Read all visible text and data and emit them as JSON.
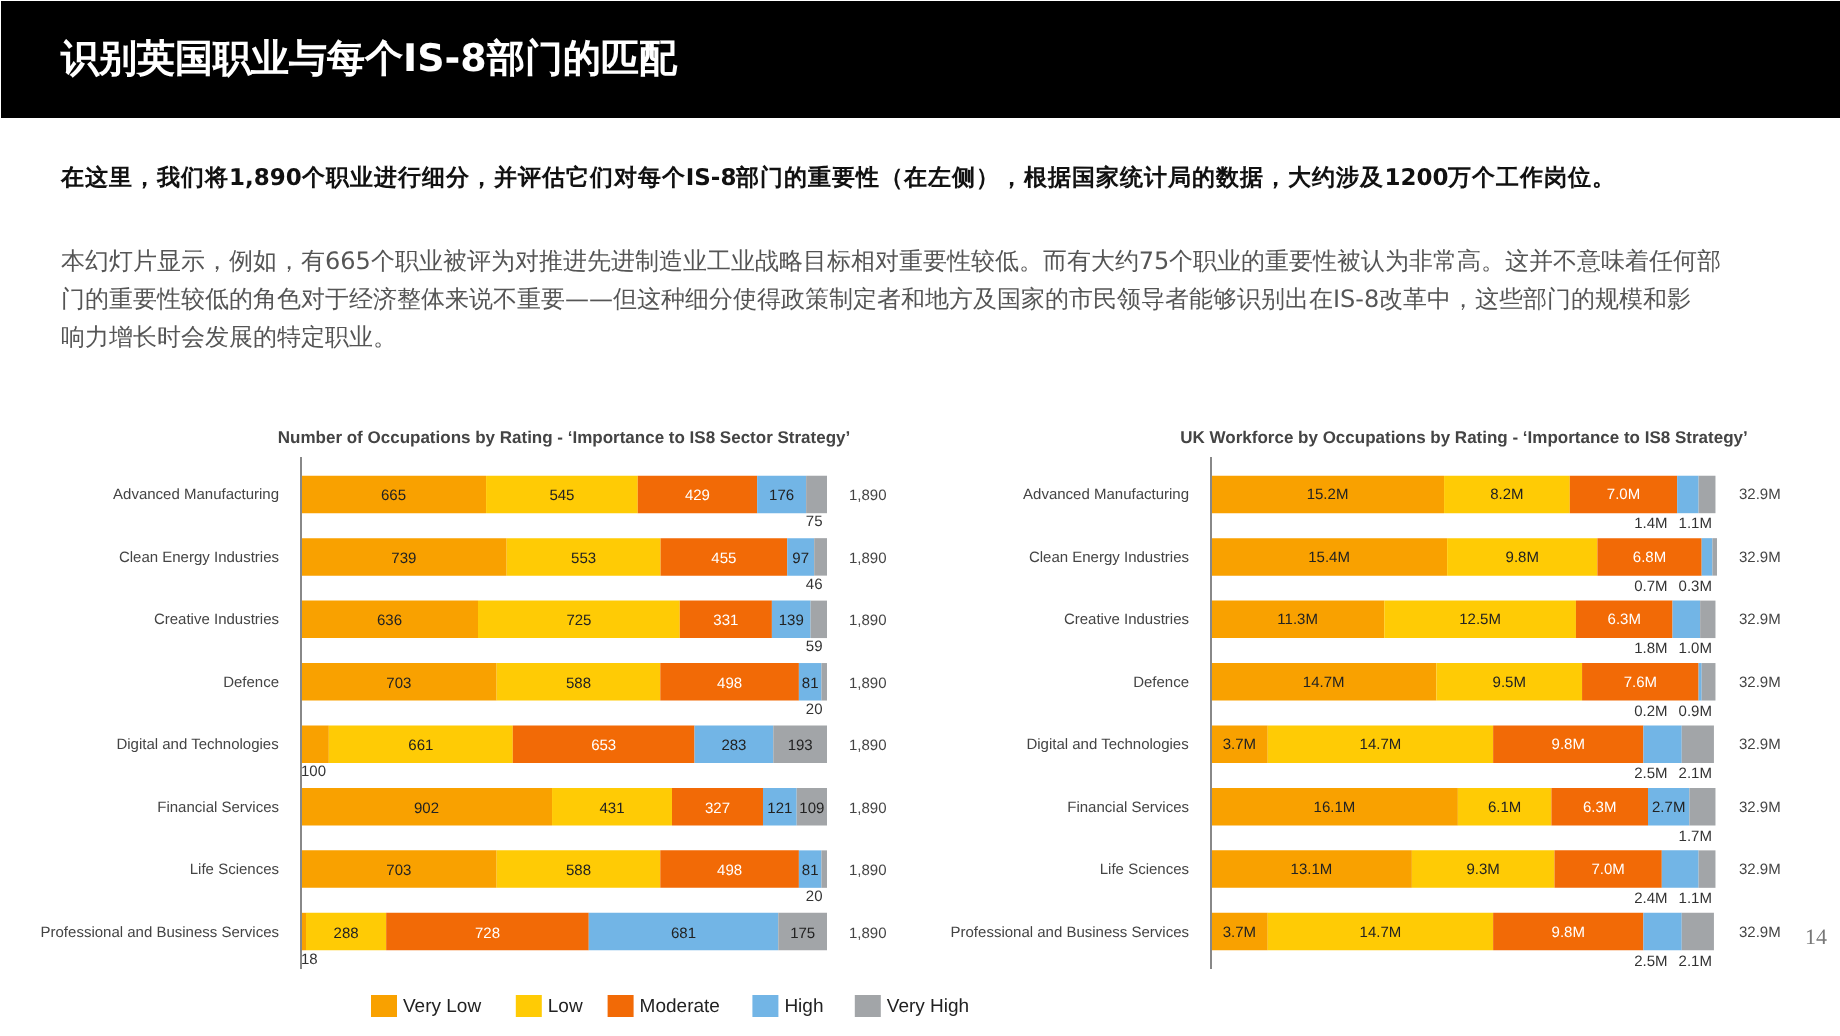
{
  "chart_data": [
    {
      "type": "other",
      "title": "识别英国职业与每个IS-8部门的匹配",
      "subtitle": "在这里，我们将1,890个职业进行细分，并评估它们对每个IS-8部门的重要性（在左侧），根据国家统计局的数据，大约涉及1200万个工作岗位。",
      "annotations": [
        "本幻灯片显示，例如，有665个职业被评为对推进先进制造业工业战略目标相对重要性较低。而有大约75个职业的重要性被认为非常高。这并不意味着任何部门的重要性较低的角色对于经济整体来说不重要——但这种细分使得政策制定者和地方及国家的市民领导者能够识别出在IS-8改革中，这些部门的规模和影响力增长时会发展的特定职业。",
        "14"
      ]
    },
    {
      "type": "bar",
      "orientation": "horizontal",
      "stacked": true,
      "data_labels": true,
      "legend": "bottom",
      "title": "Number of Occupations by Rating - ‘Importance to IS8 Sector Strategy’",
      "categories": [
        "Advanced Manufacturing",
        "Clean Energy Industries",
        "Creative Industries",
        "Defence",
        "Digital and Technologies",
        "Financial Services",
        "Life Sciences",
        "Professional and Business Services"
      ],
      "series": [
        {
          "name": "Very Low",
          "color": "#f9a100",
          "values": [
            665,
            739,
            636,
            703,
            100,
            902,
            703,
            18
          ]
        },
        {
          "name": "Low",
          "color": "#ffcb05",
          "values": [
            545,
            553,
            725,
            588,
            661,
            431,
            588,
            288
          ]
        },
        {
          "name": "Moderate",
          "color": "#f26a06",
          "values": [
            429,
            455,
            331,
            498,
            653,
            327,
            498,
            728
          ]
        },
        {
          "name": "High",
          "color": "#72b5e6",
          "values": [
            176,
            97,
            139,
            81,
            283,
            121,
            81,
            681
          ]
        },
        {
          "name": "Very High",
          "color": "#a2a5a8",
          "values": [
            75,
            46,
            59,
            20,
            193,
            109,
            20,
            175
          ]
        }
      ],
      "totals": [
        "1,890",
        "1,890",
        "1,890",
        "1,890",
        "1,890",
        "1,890",
        "1,890",
        "1,890"
      ]
    },
    {
      "type": "bar",
      "orientation": "horizontal",
      "stacked": true,
      "title": "UK Workforce by Occupations by Rating - ‘Importance to IS8 Strategy’",
      "categories": [
        "Advanced Manufacturing",
        "Clean Energy Industries",
        "Creative Industries",
        "Defence",
        "Digital and Technologies",
        "Financial Services",
        "Life Sciences",
        "Professional and Business Services"
      ],
      "series": [
        {
          "color": "#f9a100",
          "values": [
            15.2,
            15.4,
            11.3,
            14.7,
            3.7,
            16.1,
            13.1,
            3.7
          ],
          "value_labels": [
            "15.2M",
            "15.4M",
            "11.3M",
            "14.7M",
            "3.7M",
            "16.1M",
            "13.1M",
            "3.7M"
          ]
        },
        {
          "color": "#ffcb05",
          "values": [
            8.2,
            9.8,
            12.5,
            9.5,
            14.7,
            6.1,
            9.3,
            14.7
          ],
          "value_labels": [
            "8.2M",
            "9.8M",
            "12.5M",
            "9.5M",
            "14.7M",
            "6.1M",
            "9.3M",
            "14.7M"
          ]
        },
        {
          "color": "#f26a06",
          "values": [
            7.0,
            6.8,
            6.3,
            7.6,
            9.8,
            6.3,
            7.0,
            9.8
          ],
          "value_labels": [
            "7.0M",
            "6.8M",
            "6.3M",
            "7.6M",
            "9.8M",
            "6.3M",
            "7.0M",
            "9.8M"
          ]
        },
        {
          "color": "#72b5e6",
          "values": [
            1.4,
            0.7,
            1.8,
            0.2,
            2.5,
            2.7,
            2.4,
            2.5
          ],
          "value_labels": [
            "1.4M",
            "0.7M",
            "1.8M",
            "0.2M",
            "2.5M",
            "2.7M",
            "2.4M",
            "2.5M"
          ]
        },
        {
          "color": "#a2a5a8",
          "values": [
            1.1,
            0.3,
            1.0,
            0.9,
            2.1,
            1.7,
            1.1,
            2.1
          ],
          "value_labels": [
            "1.1M",
            "0.3M",
            "1.0M",
            "0.9M",
            "2.1M",
            "1.7M",
            "1.1M",
            "2.1M"
          ]
        }
      ],
      "totals": [
        "32.9M",
        "32.9M",
        "32.9M",
        "32.9M",
        "32.9M",
        "32.9M",
        "32.9M",
        "32.9M"
      ]
    }
  ]
}
